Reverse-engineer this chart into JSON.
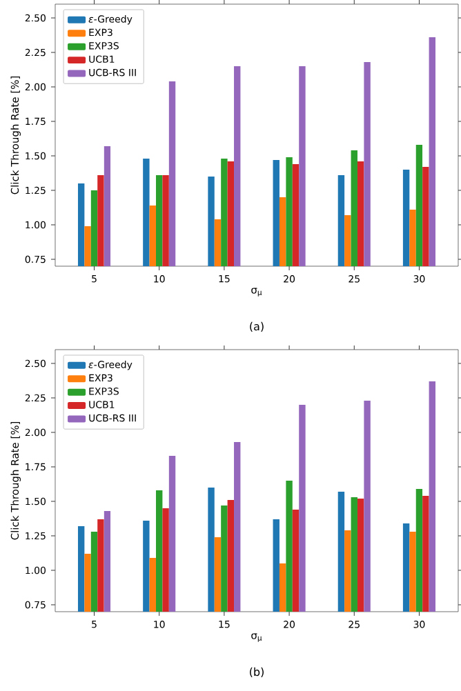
{
  "chart_data": [
    {
      "type": "bar",
      "categories": [
        "5",
        "10",
        "15",
        "20",
        "25",
        "30"
      ],
      "xlabel": "σ$_{μ}$",
      "ylabel": "Click Through Rate [%]",
      "annotations": [
        "(a)"
      ],
      "ylim": [
        0.7,
        2.6
      ],
      "yticks": [
        0.75,
        {
          "value": 1.0,
          "label": "1.00"
        },
        1.25,
        {
          "value": 1.5,
          "label": "1.50"
        },
        1.75,
        {
          "value": 2.0,
          "label": "2.00"
        },
        2.25,
        {
          "value": 2.5,
          "label": "2.50"
        }
      ],
      "legend": "top left",
      "grid": false,
      "series": [
        {
          "name": "*ε*-Greedy",
          "color": "#1f77b4",
          "values": [
            1.3,
            1.48,
            1.35,
            1.47,
            1.36,
            1.4
          ]
        },
        {
          "name": "EXP3",
          "color": "#ff7f0e",
          "values": [
            0.99,
            1.14,
            1.04,
            1.2,
            1.07,
            1.11
          ]
        },
        {
          "name": "EXP3S",
          "color": "#2ca02c",
          "values": [
            1.25,
            1.36,
            1.48,
            1.49,
            1.54,
            1.58
          ]
        },
        {
          "name": "UCB1",
          "color": "#d62728",
          "values": [
            1.36,
            1.36,
            1.46,
            1.44,
            1.46,
            1.42
          ]
        },
        {
          "name": "UCB-RS III",
          "color": "#9467bd",
          "values": [
            1.57,
            2.04,
            2.15,
            2.15,
            2.18,
            2.36
          ]
        }
      ]
    },
    {
      "type": "bar",
      "categories": [
        "5",
        "10",
        "15",
        "20",
        "25",
        "30"
      ],
      "xlabel": "σ$_{μ}$",
      "ylabel": "Click Through Rate [%]",
      "annotations": [
        "(b)"
      ],
      "ylim": [
        0.7,
        2.6
      ],
      "yticks": [
        0.75,
        {
          "value": 1.0,
          "label": "1.00"
        },
        1.25,
        {
          "value": 1.5,
          "label": "1.50"
        },
        1.75,
        {
          "value": 2.0,
          "label": "2.00"
        },
        2.25,
        {
          "value": 2.5,
          "label": "2.50"
        }
      ],
      "legend": "top left",
      "grid": false,
      "series": [
        {
          "name": "*ε*-Greedy",
          "color": "#1f77b4",
          "values": [
            1.32,
            1.36,
            1.6,
            1.37,
            1.57,
            1.34
          ]
        },
        {
          "name": "EXP3",
          "color": "#ff7f0e",
          "values": [
            1.12,
            1.09,
            1.24,
            1.05,
            1.29,
            1.28
          ]
        },
        {
          "name": "EXP3S",
          "color": "#2ca02c",
          "values": [
            1.28,
            1.58,
            1.47,
            1.65,
            1.53,
            1.59
          ]
        },
        {
          "name": "UCB1",
          "color": "#d62728",
          "values": [
            1.37,
            1.45,
            1.51,
            1.44,
            1.52,
            1.54
          ]
        },
        {
          "name": "UCB-RS III",
          "color": "#9467bd",
          "values": [
            1.43,
            1.83,
            1.93,
            2.2,
            2.23,
            2.37
          ]
        }
      ]
    }
  ]
}
